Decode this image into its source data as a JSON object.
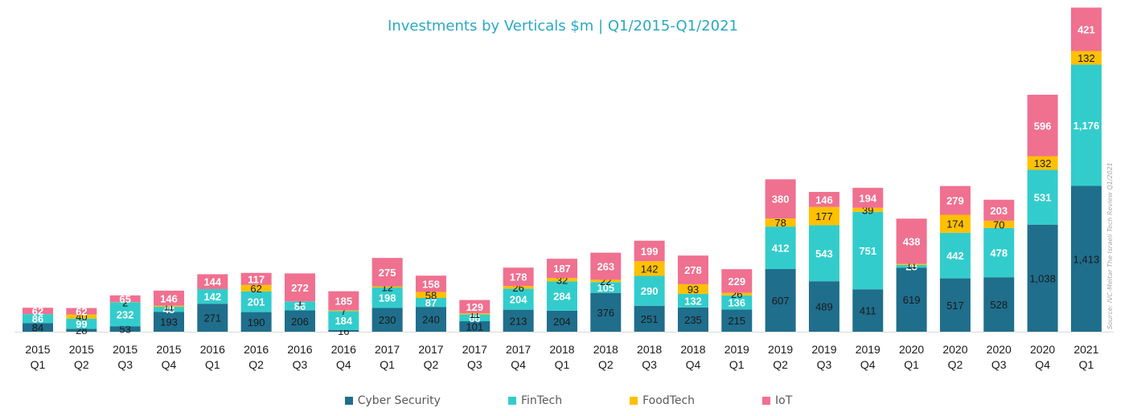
{
  "chart_data": {
    "type": "bar",
    "stacked": true,
    "title": "Investments by Verticals $m | Q1/2015-Q1/2021",
    "categories": [
      [
        "2015",
        "Q1"
      ],
      [
        "2015",
        "Q2"
      ],
      [
        "2015",
        "Q3"
      ],
      [
        "2015",
        "Q4"
      ],
      [
        "2016",
        "Q1"
      ],
      [
        "2016",
        "Q2"
      ],
      [
        "2016",
        "Q3"
      ],
      [
        "2016",
        "Q4"
      ],
      [
        "2017",
        "Q1"
      ],
      [
        "2017",
        "Q2"
      ],
      [
        "2017",
        "Q3"
      ],
      [
        "2017",
        "Q4"
      ],
      [
        "2018",
        "Q1"
      ],
      [
        "2018",
        "Q2"
      ],
      [
        "2018",
        "Q3"
      ],
      [
        "2018",
        "Q4"
      ],
      [
        "2019",
        "Q1"
      ],
      [
        "2019",
        "Q2"
      ],
      [
        "2019",
        "Q3"
      ],
      [
        "2019",
        "Q4"
      ],
      [
        "2020",
        "Q1"
      ],
      [
        "2020",
        "Q2"
      ],
      [
        "2020",
        "Q3"
      ],
      [
        "2020",
        "Q4"
      ],
      [
        "2021",
        "Q1"
      ]
    ],
    "series": [
      {
        "name": "Cyber Security",
        "color": "#1f6e8c",
        "label_color": "#1a1a1a",
        "values": [
          84,
          28,
          53,
          193,
          271,
          190,
          206,
          16,
          230,
          240,
          101,
          213,
          204,
          376,
          251,
          235,
          215,
          607,
          489,
          411,
          619,
          517,
          528,
          1038,
          1413
        ]
      },
      {
        "name": "FinTech",
        "color": "#33cccc",
        "label_color": "#ffffff",
        "values": [
          86,
          99,
          232,
          48,
          142,
          201,
          86,
          184,
          198,
          87,
          66,
          204,
          284,
          105,
          290,
          132,
          136,
          412,
          543,
          751,
          28,
          442,
          478,
          531,
          1176
        ]
      },
      {
        "name": "FoodTech",
        "color": "#ffc000",
        "label_color": "#1a1a1a",
        "values": [
          0,
          40,
          2,
          11,
          0,
          62,
          1,
          7,
          12,
          58,
          11,
          26,
          32,
          22,
          142,
          93,
          26,
          78,
          177,
          39,
          11,
          174,
          70,
          132,
          132
        ]
      },
      {
        "name": "IoT",
        "color": "#f07090",
        "label_color": "#ffffff",
        "values": [
          62,
          62,
          65,
          146,
          144,
          117,
          272,
          185,
          275,
          158,
          129,
          178,
          187,
          263,
          199,
          278,
          229,
          380,
          146,
          194,
          438,
          279,
          203,
          596,
          421
        ]
      }
    ],
    "ylim": [
      0,
      3200
    ],
    "grid": false,
    "legend_position": "bottom"
  },
  "legend": [
    {
      "label": "Cyber Security",
      "color": "#1f6e8c"
    },
    {
      "label": "FinTech",
      "color": "#33cccc"
    },
    {
      "label": "FoodTech",
      "color": "#ffc000"
    },
    {
      "label": "IoT",
      "color": "#f07090"
    }
  ],
  "source_note": "Source: IVC-Meitar The Israeli Tech Review Q1/2021"
}
